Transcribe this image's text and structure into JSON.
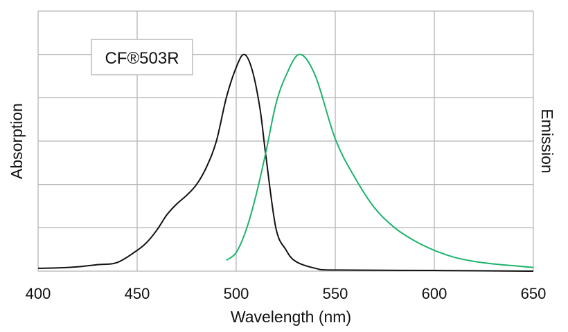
{
  "chart_data": {
    "type": "line",
    "title": "",
    "annotation": "CF®503R",
    "xlabel": "Wavelength (nm)",
    "ylabel_left": "Absorption",
    "ylabel_right": "Emission",
    "xlim": [
      400,
      650
    ],
    "ylim": [
      0,
      1.2
    ],
    "xticks": [
      400,
      450,
      500,
      550,
      600,
      650
    ],
    "yticks": [
      0,
      0.2,
      0.4,
      0.6,
      0.8,
      1.0,
      1.2
    ],
    "grid": true,
    "series": [
      {
        "name": "Absorption",
        "color": "#111111",
        "x": [
          400,
          410,
          420,
          430,
          440,
          450,
          455,
          460,
          465,
          470,
          475,
          480,
          485,
          490,
          495,
          500,
          504,
          508,
          512,
          515,
          520,
          525,
          530,
          540,
          550,
          600,
          650
        ],
        "y": [
          0.013,
          0.015,
          0.02,
          0.03,
          0.04,
          0.096,
          0.134,
          0.19,
          0.26,
          0.31,
          0.35,
          0.4,
          0.48,
          0.6,
          0.8,
          0.94,
          1.0,
          0.93,
          0.75,
          0.53,
          0.2,
          0.1,
          0.045,
          0.013,
          0.005,
          0.003,
          0.0
        ]
      },
      {
        "name": "Emission",
        "color": "#1db36b",
        "x": [
          495,
          500,
          505,
          510,
          515,
          520,
          525,
          532,
          540,
          550,
          560,
          570,
          580,
          590,
          600,
          610,
          620,
          630,
          640,
          650
        ],
        "y": [
          0.05,
          0.086,
          0.19,
          0.35,
          0.55,
          0.77,
          0.9,
          1.0,
          0.9,
          0.61,
          0.43,
          0.29,
          0.2,
          0.14,
          0.096,
          0.064,
          0.045,
          0.033,
          0.025,
          0.017
        ]
      }
    ]
  }
}
